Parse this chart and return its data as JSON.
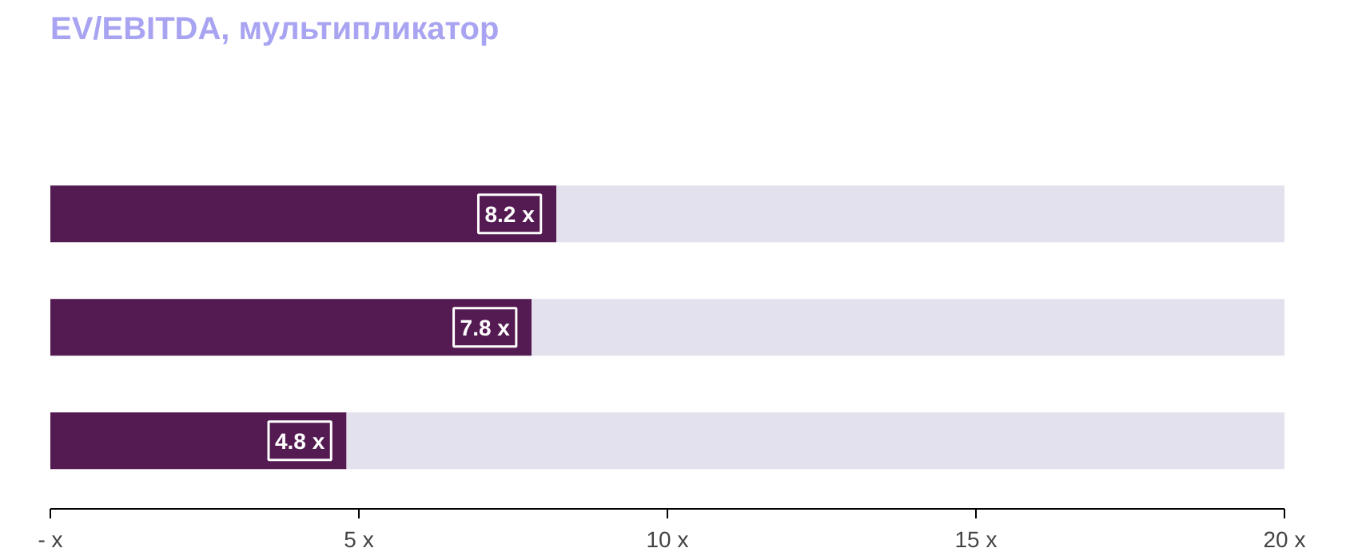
{
  "chart_data": {
    "type": "bar",
    "orientation": "horizontal",
    "stacked": true,
    "title": "EV/EBITDA, мультипликатор",
    "categories": [
      null,
      null,
      null
    ],
    "series": [
      {
        "color": "#541a52",
        "values": [
          8.2,
          7.8,
          4.8
        ],
        "value_labels": [
          "8.2 x",
          "7.8 x",
          "4.8 x"
        ]
      },
      {
        "color": "#e3e1ee",
        "values": [
          11.8,
          12.2,
          15.2
        ]
      }
    ],
    "xlim": [
      0,
      20
    ],
    "xticks": [
      {
        "value": 0,
        "label": "- x"
      },
      {
        "value": 5,
        "label": "5 x"
      },
      {
        "value": 10,
        "label": "10 x"
      },
      {
        "value": 15,
        "label": "15 x"
      },
      {
        "value": 20,
        "label": "20 x"
      }
    ],
    "grid": false
  }
}
